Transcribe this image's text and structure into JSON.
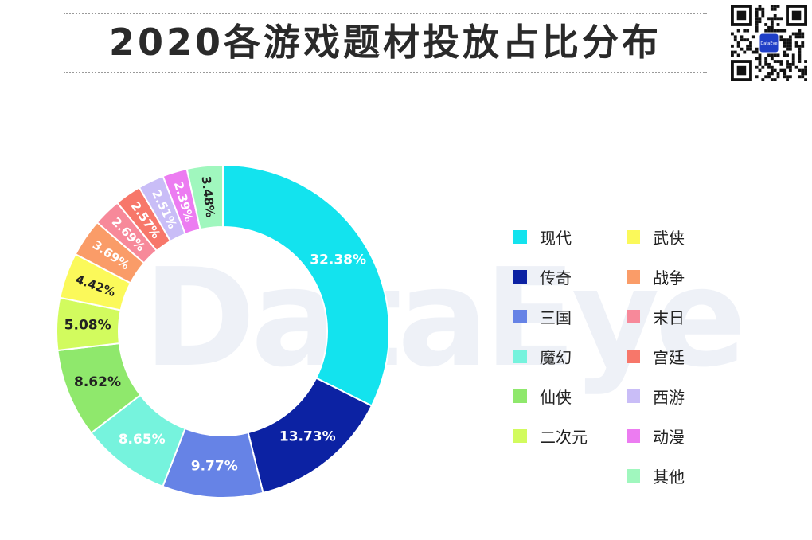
{
  "header": {
    "title": "2020各游戏题材投放占比分布",
    "watermark": "DataEye",
    "qr_badge": "DataEye"
  },
  "chart_data": {
    "type": "pie",
    "donut": true,
    "title": "2020各游戏题材投放占比分布",
    "legend_position": "right",
    "slices": [
      {
        "name": "现代",
        "value": 32.38,
        "label": "32.38%",
        "color": "#13e3ee",
        "label_color": "#ffffff"
      },
      {
        "name": "传奇",
        "value": 13.73,
        "label": "13.73%",
        "color": "#0c22a3",
        "label_color": "#ffffff"
      },
      {
        "name": "三国",
        "value": 9.77,
        "label": "9.77%",
        "color": "#6683e6",
        "label_color": "#ffffff"
      },
      {
        "name": "魔幻",
        "value": 8.65,
        "label": "8.65%",
        "color": "#76f3dd",
        "label_color": "#ffffff"
      },
      {
        "name": "仙侠",
        "value": 8.62,
        "label": "8.62%",
        "color": "#8fe86c",
        "label_color": "#222222"
      },
      {
        "name": "二次元",
        "value": 5.08,
        "label": "5.08%",
        "color": "#d2fb5e",
        "label_color": "#222222"
      },
      {
        "name": "武侠",
        "value": 4.42,
        "label": "4.42%",
        "color": "#fbf95a",
        "label_color": "#222222"
      },
      {
        "name": "战争",
        "value": 3.69,
        "label": "3.69%",
        "color": "#fa9c68",
        "label_color": "#ffffff"
      },
      {
        "name": "末日",
        "value": 2.69,
        "label": "2.69%",
        "color": "#f7899a",
        "label_color": "#ffffff"
      },
      {
        "name": "宫廷",
        "value": 2.57,
        "label": "2.57%",
        "color": "#f7776a",
        "label_color": "#ffffff"
      },
      {
        "name": "西游",
        "value": 2.51,
        "label": "2.51%",
        "color": "#c9bdf7",
        "label_color": "#ffffff"
      },
      {
        "name": "动漫",
        "value": 2.39,
        "label": "2.39%",
        "color": "#ec7cf1",
        "label_color": "#ffffff"
      },
      {
        "name": "其他",
        "value": 3.48,
        "label": "3.48%",
        "color": "#a0f7be",
        "label_color": "#222222"
      }
    ]
  }
}
